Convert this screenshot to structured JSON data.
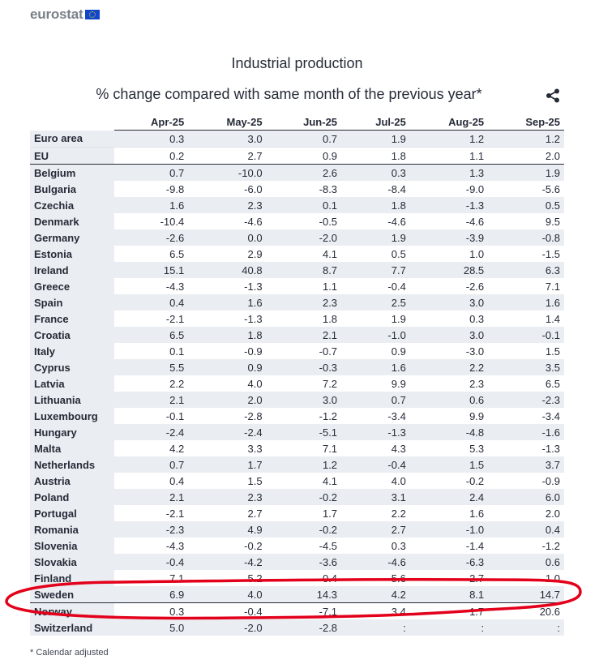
{
  "brand": {
    "name": "eurostat",
    "flag_icon": "eu-flag-icon"
  },
  "share_icon": "share-icon",
  "chart_data": {
    "type": "table",
    "title": "Industrial production",
    "subtitle": "% change compared with same month of the previous year*",
    "columns": [
      "Apr-25",
      "May-25",
      "Jun-25",
      "Jul-25",
      "Aug-25",
      "Sep-25"
    ],
    "rows": [
      {
        "label": "Euro area",
        "values": [
          "0.3",
          "3.0",
          "0.7",
          "1.9",
          "1.2",
          "1.2"
        ]
      },
      {
        "label": "EU",
        "values": [
          "0.2",
          "2.7",
          "0.9",
          "1.8",
          "1.1",
          "2.0"
        ]
      },
      {
        "label": "Belgium",
        "values": [
          "0.7",
          "-10.0",
          "2.6",
          "0.3",
          "1.3",
          "1.9"
        ]
      },
      {
        "label": "Bulgaria",
        "values": [
          "-9.8",
          "-6.0",
          "-8.3",
          "-8.4",
          "-9.0",
          "-5.6"
        ]
      },
      {
        "label": "Czechia",
        "values": [
          "1.6",
          "2.3",
          "0.1",
          "1.8",
          "-1.3",
          "0.5"
        ]
      },
      {
        "label": "Denmark",
        "values": [
          "-10.4",
          "-4.6",
          "-0.5",
          "-4.6",
          "-4.6",
          "9.5"
        ]
      },
      {
        "label": "Germany",
        "values": [
          "-2.6",
          "0.0",
          "-2.0",
          "1.9",
          "-3.9",
          "-0.8"
        ]
      },
      {
        "label": "Estonia",
        "values": [
          "6.5",
          "2.9",
          "4.1",
          "0.5",
          "1.0",
          "-1.5"
        ]
      },
      {
        "label": "Ireland",
        "values": [
          "15.1",
          "40.8",
          "8.7",
          "7.7",
          "28.5",
          "6.3"
        ]
      },
      {
        "label": "Greece",
        "values": [
          "-4.3",
          "-1.3",
          "1.1",
          "-0.4",
          "-2.6",
          "7.1"
        ]
      },
      {
        "label": "Spain",
        "values": [
          "0.4",
          "1.6",
          "2.3",
          "2.5",
          "3.0",
          "1.6"
        ]
      },
      {
        "label": "France",
        "values": [
          "-2.1",
          "-1.3",
          "1.8",
          "1.9",
          "0.3",
          "1.4"
        ]
      },
      {
        "label": "Croatia",
        "values": [
          "6.5",
          "1.8",
          "2.1",
          "-1.0",
          "3.0",
          "-0.1"
        ]
      },
      {
        "label": "Italy",
        "values": [
          "0.1",
          "-0.9",
          "-0.7",
          "0.9",
          "-3.0",
          "1.5"
        ]
      },
      {
        "label": "Cyprus",
        "values": [
          "5.5",
          "0.9",
          "-0.3",
          "1.6",
          "2.2",
          "3.5"
        ]
      },
      {
        "label": "Latvia",
        "values": [
          "2.2",
          "4.0",
          "7.2",
          "9.9",
          "2.3",
          "6.5"
        ]
      },
      {
        "label": "Lithuania",
        "values": [
          "2.1",
          "2.0",
          "3.0",
          "0.7",
          "0.6",
          "-2.3"
        ]
      },
      {
        "label": "Luxembourg",
        "values": [
          "-0.1",
          "-2.8",
          "-1.2",
          "-3.4",
          "9.9",
          "-3.4"
        ]
      },
      {
        "label": "Hungary",
        "values": [
          "-2.4",
          "-2.4",
          "-5.1",
          "-1.3",
          "-4.8",
          "-1.6"
        ]
      },
      {
        "label": "Malta",
        "values": [
          "4.2",
          "3.3",
          "7.1",
          "4.3",
          "5.3",
          "-1.3"
        ]
      },
      {
        "label": "Netherlands",
        "values": [
          "0.7",
          "1.7",
          "1.2",
          "-0.4",
          "1.5",
          "3.7"
        ]
      },
      {
        "label": "Austria",
        "values": [
          "0.4",
          "1.5",
          "4.1",
          "4.0",
          "-0.2",
          "-0.9"
        ]
      },
      {
        "label": "Poland",
        "values": [
          "2.1",
          "2.3",
          "-0.2",
          "3.1",
          "2.4",
          "6.0"
        ]
      },
      {
        "label": "Portugal",
        "values": [
          "-2.1",
          "2.7",
          "1.7",
          "2.2",
          "1.6",
          "2.0"
        ]
      },
      {
        "label": "Romania",
        "values": [
          "-2.3",
          "4.9",
          "-0.2",
          "2.7",
          "-1.0",
          "0.4"
        ]
      },
      {
        "label": "Slovenia",
        "values": [
          "-4.3",
          "-0.2",
          "-4.5",
          "0.3",
          "-1.4",
          "-1.2"
        ]
      },
      {
        "label": "Slovakia",
        "values": [
          "-0.4",
          "-4.2",
          "-3.6",
          "-4.6",
          "-6.3",
          "0.6"
        ]
      },
      {
        "label": "Finland",
        "values": [
          "7.1",
          "5.2",
          "0.4",
          "5.6",
          "2.7",
          "1.0"
        ]
      },
      {
        "label": "Sweden",
        "values": [
          "6.9",
          "4.0",
          "14.3",
          "4.2",
          "8.1",
          "14.7"
        ]
      },
      {
        "label": "Norway",
        "values": [
          "0.3",
          "-0.4",
          "-7.1",
          "3.4",
          "1.7",
          "20.6"
        ]
      },
      {
        "label": "Switzerland",
        "values": [
          "5.0",
          "-2.0",
          "-2.8",
          ":",
          ":",
          ":"
        ]
      }
    ]
  },
  "footnote": "*  Calendar adjusted",
  "colors": {
    "text": "#262b38",
    "stripe": "#eaedf1",
    "annotation": "#e3001b",
    "logo_text": "#7a8089",
    "flag": "#0e47cb"
  }
}
